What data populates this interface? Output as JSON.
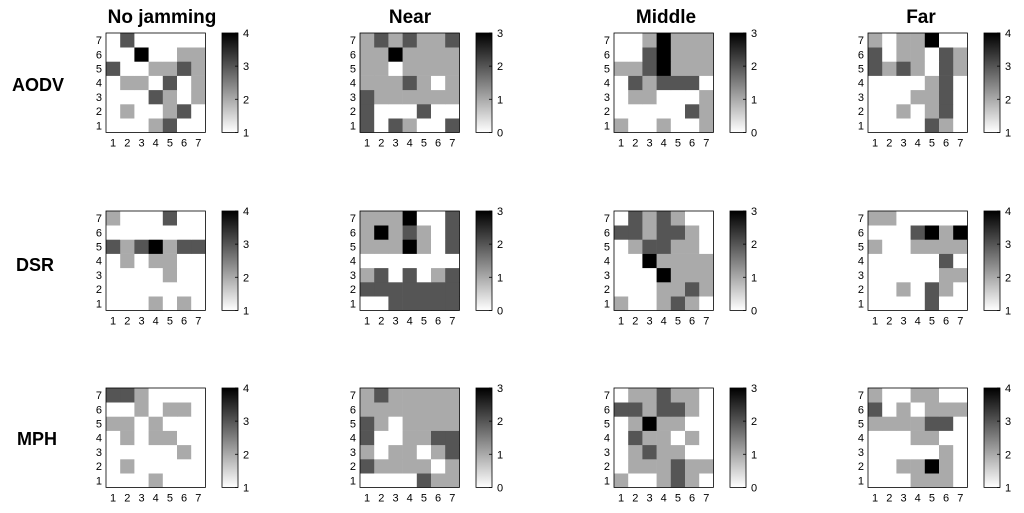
{
  "columns": [
    "No jamming",
    "Near",
    "Middle",
    "Far"
  ],
  "rows": [
    "AODV",
    "DSR",
    "MPH"
  ],
  "chart_data": [
    {
      "type": "heatmap",
      "row": "AODV",
      "column": "No jamming",
      "x": [
        1,
        2,
        3,
        4,
        5,
        6,
        7
      ],
      "y": [
        1,
        2,
        3,
        4,
        5,
        6,
        7
      ],
      "colorbar": [
        1,
        4
      ],
      "colorbar_ticks": [
        "1",
        "2",
        "3",
        "4"
      ],
      "cells": [
        [
          1,
          1,
          1,
          2,
          3,
          1,
          1
        ],
        [
          1,
          2,
          1,
          1,
          2,
          3,
          1
        ],
        [
          1,
          1,
          1,
          3,
          2,
          1,
          2
        ],
        [
          1,
          2,
          2,
          1,
          3,
          1,
          2
        ],
        [
          3,
          1,
          1,
          2,
          2,
          3,
          2
        ],
        [
          1,
          1,
          4,
          1,
          1,
          2,
          2
        ],
        [
          1,
          3,
          1,
          1,
          1,
          1,
          1
        ]
      ]
    },
    {
      "type": "heatmap",
      "row": "AODV",
      "column": "Near",
      "x": [
        1,
        2,
        3,
        4,
        5,
        6,
        7
      ],
      "y": [
        1,
        2,
        3,
        4,
        5,
        6,
        7
      ],
      "colorbar": [
        0,
        3
      ],
      "colorbar_ticks": [
        "0",
        "1",
        "2",
        "3"
      ],
      "cells": [
        [
          2,
          0,
          2,
          1,
          0,
          0,
          2
        ],
        [
          2,
          0,
          0,
          0,
          2,
          0,
          0
        ],
        [
          2,
          1,
          1,
          1,
          1,
          1,
          1
        ],
        [
          1,
          1,
          1,
          2,
          1,
          0,
          1
        ],
        [
          1,
          1,
          0,
          1,
          1,
          1,
          1
        ],
        [
          1,
          1,
          3,
          1,
          1,
          1,
          1
        ],
        [
          1,
          2,
          1,
          2,
          1,
          1,
          2
        ]
      ]
    },
    {
      "type": "heatmap",
      "row": "AODV",
      "column": "Middle",
      "x": [
        1,
        2,
        3,
        4,
        5,
        6,
        7
      ],
      "y": [
        1,
        2,
        3,
        4,
        5,
        6,
        7
      ],
      "colorbar": [
        0,
        3
      ],
      "colorbar_ticks": [
        "0",
        "1",
        "2",
        "3"
      ],
      "cells": [
        [
          1,
          0,
          0,
          1,
          0,
          0,
          1
        ],
        [
          0,
          0,
          0,
          0,
          0,
          2,
          1
        ],
        [
          0,
          1,
          1,
          0,
          0,
          0,
          1
        ],
        [
          0,
          2,
          1,
          2,
          2,
          2,
          0
        ],
        [
          1,
          1,
          2,
          3,
          1,
          1,
          1
        ],
        [
          0,
          0,
          2,
          3,
          1,
          1,
          1
        ],
        [
          0,
          0,
          1,
          3,
          1,
          1,
          1
        ]
      ]
    },
    {
      "type": "heatmap",
      "row": "AODV",
      "column": "Far",
      "x": [
        1,
        2,
        3,
        4,
        5,
        6,
        7
      ],
      "y": [
        1,
        2,
        3,
        4,
        5,
        6,
        7
      ],
      "colorbar": [
        1,
        4
      ],
      "colorbar_ticks": [
        "1",
        "2",
        "3",
        "4"
      ],
      "cells": [
        [
          1,
          1,
          1,
          1,
          3,
          2,
          1
        ],
        [
          1,
          1,
          2,
          1,
          2,
          3,
          1
        ],
        [
          1,
          1,
          1,
          2,
          2,
          3,
          1
        ],
        [
          1,
          1,
          1,
          1,
          2,
          3,
          1
        ],
        [
          3,
          2,
          3,
          2,
          1,
          3,
          2
        ],
        [
          3,
          1,
          2,
          2,
          1,
          3,
          2
        ],
        [
          2,
          1,
          2,
          2,
          4,
          1,
          1
        ]
      ]
    },
    {
      "type": "heatmap",
      "row": "DSR",
      "column": "No jamming",
      "x": [
        1,
        2,
        3,
        4,
        5,
        6,
        7
      ],
      "y": [
        1,
        2,
        3,
        4,
        5,
        6,
        7
      ],
      "colorbar": [
        1,
        4
      ],
      "colorbar_ticks": [
        "1",
        "2",
        "3",
        "4"
      ],
      "cells": [
        [
          1,
          1,
          1,
          2,
          1,
          2,
          1
        ],
        [
          1,
          1,
          1,
          1,
          1,
          1,
          1
        ],
        [
          1,
          1,
          1,
          1,
          2,
          1,
          1
        ],
        [
          1,
          2,
          1,
          2,
          2,
          1,
          1
        ],
        [
          3,
          2,
          3,
          4,
          2,
          3,
          3
        ],
        [
          1,
          1,
          1,
          1,
          1,
          1,
          1
        ],
        [
          2,
          1,
          1,
          1,
          3,
          1,
          1
        ]
      ]
    },
    {
      "type": "heatmap",
      "row": "DSR",
      "column": "Near",
      "x": [
        1,
        2,
        3,
        4,
        5,
        6,
        7
      ],
      "y": [
        1,
        2,
        3,
        4,
        5,
        6,
        7
      ],
      "colorbar": [
        0,
        3
      ],
      "colorbar_ticks": [
        "0",
        "1",
        "2",
        "3"
      ],
      "cells": [
        [
          0,
          0,
          2,
          2,
          2,
          2,
          2
        ],
        [
          2,
          2,
          2,
          2,
          2,
          2,
          2
        ],
        [
          1,
          2,
          0,
          2,
          0,
          1,
          2
        ],
        [
          0,
          0,
          0,
          0,
          0,
          0,
          0
        ],
        [
          1,
          1,
          1,
          3,
          1,
          0,
          2
        ],
        [
          1,
          3,
          1,
          2,
          1,
          0,
          2
        ],
        [
          1,
          1,
          1,
          3,
          0,
          0,
          2
        ]
      ]
    },
    {
      "type": "heatmap",
      "row": "DSR",
      "column": "Middle",
      "x": [
        1,
        2,
        3,
        4,
        5,
        6,
        7
      ],
      "y": [
        1,
        2,
        3,
        4,
        5,
        6,
        7
      ],
      "colorbar": [
        0,
        3
      ],
      "colorbar_ticks": [
        "0",
        "1",
        "2",
        "3"
      ],
      "cells": [
        [
          1,
          0,
          0,
          1,
          2,
          1,
          0
        ],
        [
          0,
          0,
          0,
          1,
          1,
          2,
          1
        ],
        [
          0,
          0,
          0,
          3,
          1,
          1,
          1
        ],
        [
          0,
          0,
          3,
          1,
          1,
          1,
          1
        ],
        [
          0,
          1,
          2,
          2,
          1,
          1,
          0
        ],
        [
          2,
          2,
          1,
          2,
          2,
          1,
          0
        ],
        [
          0,
          2,
          1,
          2,
          1,
          0,
          0
        ]
      ]
    },
    {
      "type": "heatmap",
      "row": "DSR",
      "column": "Far",
      "x": [
        1,
        2,
        3,
        4,
        5,
        6,
        7
      ],
      "y": [
        1,
        2,
        3,
        4,
        5,
        6,
        7
      ],
      "colorbar": [
        1,
        4
      ],
      "colorbar_ticks": [
        "1",
        "2",
        "3",
        "4"
      ],
      "cells": [
        [
          1,
          1,
          1,
          1,
          3,
          1,
          1
        ],
        [
          1,
          1,
          2,
          1,
          3,
          2,
          1
        ],
        [
          1,
          1,
          1,
          1,
          1,
          2,
          2
        ],
        [
          1,
          1,
          1,
          1,
          1,
          3,
          1
        ],
        [
          2,
          1,
          1,
          2,
          2,
          2,
          2
        ],
        [
          1,
          1,
          1,
          3,
          4,
          2,
          4
        ],
        [
          2,
          2,
          1,
          1,
          1,
          1,
          1
        ]
      ]
    },
    {
      "type": "heatmap",
      "row": "MPH",
      "column": "No jamming",
      "x": [
        1,
        2,
        3,
        4,
        5,
        6,
        7
      ],
      "y": [
        1,
        2,
        3,
        4,
        5,
        6,
        7
      ],
      "colorbar": [
        1,
        4
      ],
      "colorbar_ticks": [
        "1",
        "2",
        "3",
        "4"
      ],
      "cells": [
        [
          1,
          1,
          1,
          2,
          1,
          1,
          1
        ],
        [
          1,
          2,
          1,
          1,
          1,
          1,
          1
        ],
        [
          1,
          1,
          1,
          1,
          1,
          2,
          1
        ],
        [
          1,
          2,
          1,
          2,
          2,
          1,
          1
        ],
        [
          2,
          2,
          1,
          2,
          1,
          1,
          1
        ],
        [
          1,
          1,
          2,
          1,
          2,
          2,
          1
        ],
        [
          3,
          3,
          2,
          1,
          1,
          1,
          1
        ]
      ]
    },
    {
      "type": "heatmap",
      "row": "MPH",
      "column": "Near",
      "x": [
        1,
        2,
        3,
        4,
        5,
        6,
        7
      ],
      "y": [
        1,
        2,
        3,
        4,
        5,
        6,
        7
      ],
      "colorbar": [
        0,
        3
      ],
      "colorbar_ticks": [
        "0",
        "1",
        "2",
        "3"
      ],
      "cells": [
        [
          0,
          0,
          0,
          0,
          2,
          1,
          1
        ],
        [
          2,
          1,
          1,
          1,
          1,
          0,
          1
        ],
        [
          1,
          0,
          1,
          1,
          0,
          1,
          2
        ],
        [
          2,
          0,
          0,
          1,
          1,
          2,
          2
        ],
        [
          2,
          1,
          0,
          1,
          1,
          1,
          1
        ],
        [
          1,
          1,
          1,
          1,
          1,
          1,
          1
        ],
        [
          1,
          2,
          1,
          1,
          1,
          1,
          1
        ]
      ]
    },
    {
      "type": "heatmap",
      "row": "MPH",
      "column": "Middle",
      "x": [
        1,
        2,
        3,
        4,
        5,
        6,
        7
      ],
      "y": [
        1,
        2,
        3,
        4,
        5,
        6,
        7
      ],
      "colorbar": [
        0,
        3
      ],
      "colorbar_ticks": [
        "0",
        "1",
        "2",
        "3"
      ],
      "cells": [
        [
          1,
          0,
          0,
          1,
          2,
          1,
          0
        ],
        [
          0,
          1,
          1,
          1,
          2,
          1,
          1
        ],
        [
          0,
          1,
          2,
          1,
          1,
          0,
          0
        ],
        [
          0,
          2,
          1,
          1,
          0,
          1,
          0
        ],
        [
          0,
          1,
          3,
          1,
          1,
          0,
          0
        ],
        [
          2,
          2,
          1,
          2,
          2,
          1,
          0
        ],
        [
          0,
          1,
          1,
          2,
          1,
          1,
          0
        ]
      ]
    },
    {
      "type": "heatmap",
      "row": "MPH",
      "column": "Far",
      "x": [
        1,
        2,
        3,
        4,
        5,
        6,
        7
      ],
      "y": [
        1,
        2,
        3,
        4,
        5,
        6,
        7
      ],
      "colorbar": [
        1,
        4
      ],
      "colorbar_ticks": [
        "1",
        "2",
        "3",
        "4"
      ],
      "cells": [
        [
          1,
          1,
          1,
          2,
          2,
          2,
          1
        ],
        [
          1,
          1,
          2,
          2,
          4,
          2,
          1
        ],
        [
          1,
          1,
          1,
          1,
          1,
          2,
          1
        ],
        [
          1,
          1,
          1,
          2,
          2,
          1,
          1
        ],
        [
          2,
          2,
          2,
          2,
          3,
          3,
          1
        ],
        [
          3,
          1,
          2,
          1,
          2,
          2,
          2
        ],
        [
          2,
          1,
          1,
          2,
          2,
          1,
          1
        ]
      ]
    }
  ]
}
